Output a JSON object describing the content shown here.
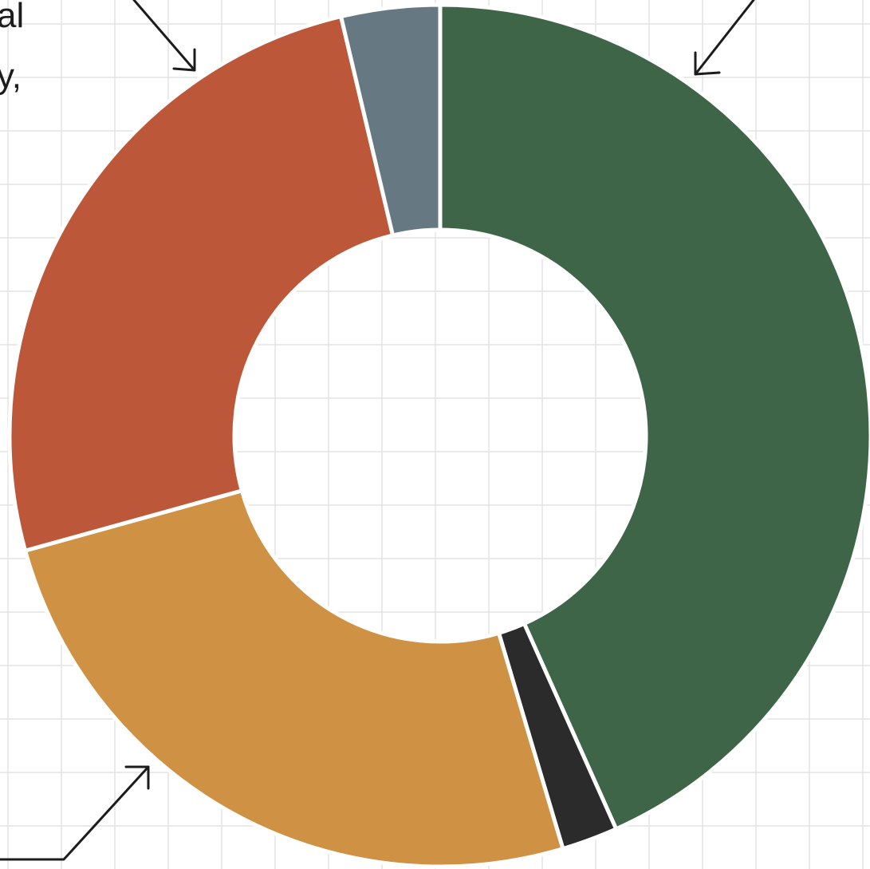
{
  "chart_data": {
    "type": "pie",
    "donut": true,
    "start_angle_deg": 0,
    "direction": "clockwise",
    "grid": true,
    "colors": {
      "grid": "#e4e4e4",
      "background": "#ffffff"
    },
    "slices": [
      {
        "value": 43.3,
        "color": "#3f6548"
      },
      {
        "value": 2.1,
        "color": "#2b2b2b"
      },
      {
        "value": 25.3,
        "color": "#cf9143"
      },
      {
        "value": 25.6,
        "color": "#bc5739"
      },
      {
        "value": 3.7,
        "color": "#667983"
      }
    ],
    "annotations": [
      {
        "text": "al"
      },
      {
        "text": "y,"
      }
    ]
  }
}
